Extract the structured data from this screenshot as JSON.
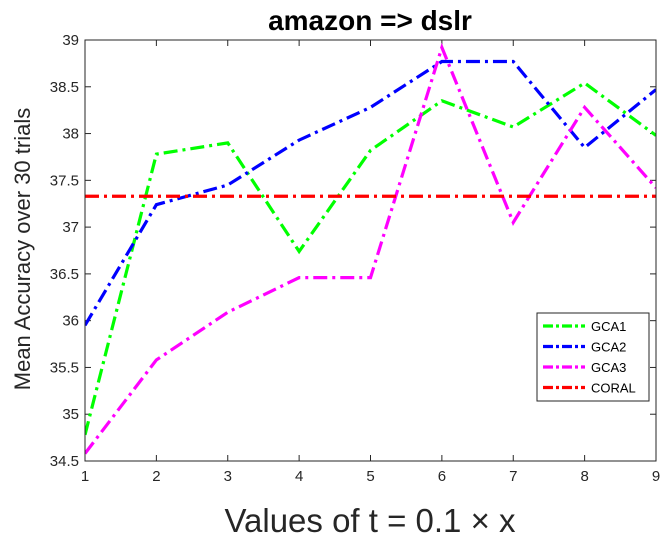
{
  "chart_data": {
    "type": "line",
    "title": "amazon => dslr",
    "xlabel": "Values of t = 0.1 × x",
    "ylabel": "Mean Accuracy over 30 trials",
    "x": [
      1,
      2,
      3,
      4,
      5,
      6,
      7,
      8,
      9
    ],
    "xlim": [
      1,
      9
    ],
    "ylim": [
      34.5,
      39
    ],
    "xticks": [
      "1",
      "2",
      "3",
      "4",
      "5",
      "6",
      "7",
      "8",
      "9"
    ],
    "yticks": [
      "34.5",
      "35",
      "35.5",
      "36",
      "36.5",
      "37",
      "37.5",
      "38",
      "38.5",
      "39"
    ],
    "grid": false,
    "legend_position": "lower-right",
    "series": [
      {
        "name": "GCA1",
        "color": "#00ff00",
        "dash": "dash-dot",
        "values": [
          34.78,
          37.78,
          37.9,
          36.74,
          37.82,
          38.35,
          38.07,
          38.54,
          37.98
        ]
      },
      {
        "name": "GCA2",
        "color": "#0000ff",
        "dash": "dash-dot",
        "values": [
          35.95,
          37.24,
          37.45,
          37.93,
          38.28,
          38.77,
          38.77,
          37.85,
          38.47
        ]
      },
      {
        "name": "GCA3",
        "color": "#ff00ff",
        "dash": "dash-dot",
        "values": [
          34.58,
          35.58,
          36.09,
          36.46,
          36.46,
          38.92,
          37.05,
          38.28,
          37.42
        ]
      },
      {
        "name": "CORAL",
        "color": "#ff0000",
        "dash": "dash-dot",
        "values": [
          37.33,
          37.33,
          37.33,
          37.33,
          37.33,
          37.33,
          37.33,
          37.33,
          37.33
        ]
      }
    ]
  }
}
